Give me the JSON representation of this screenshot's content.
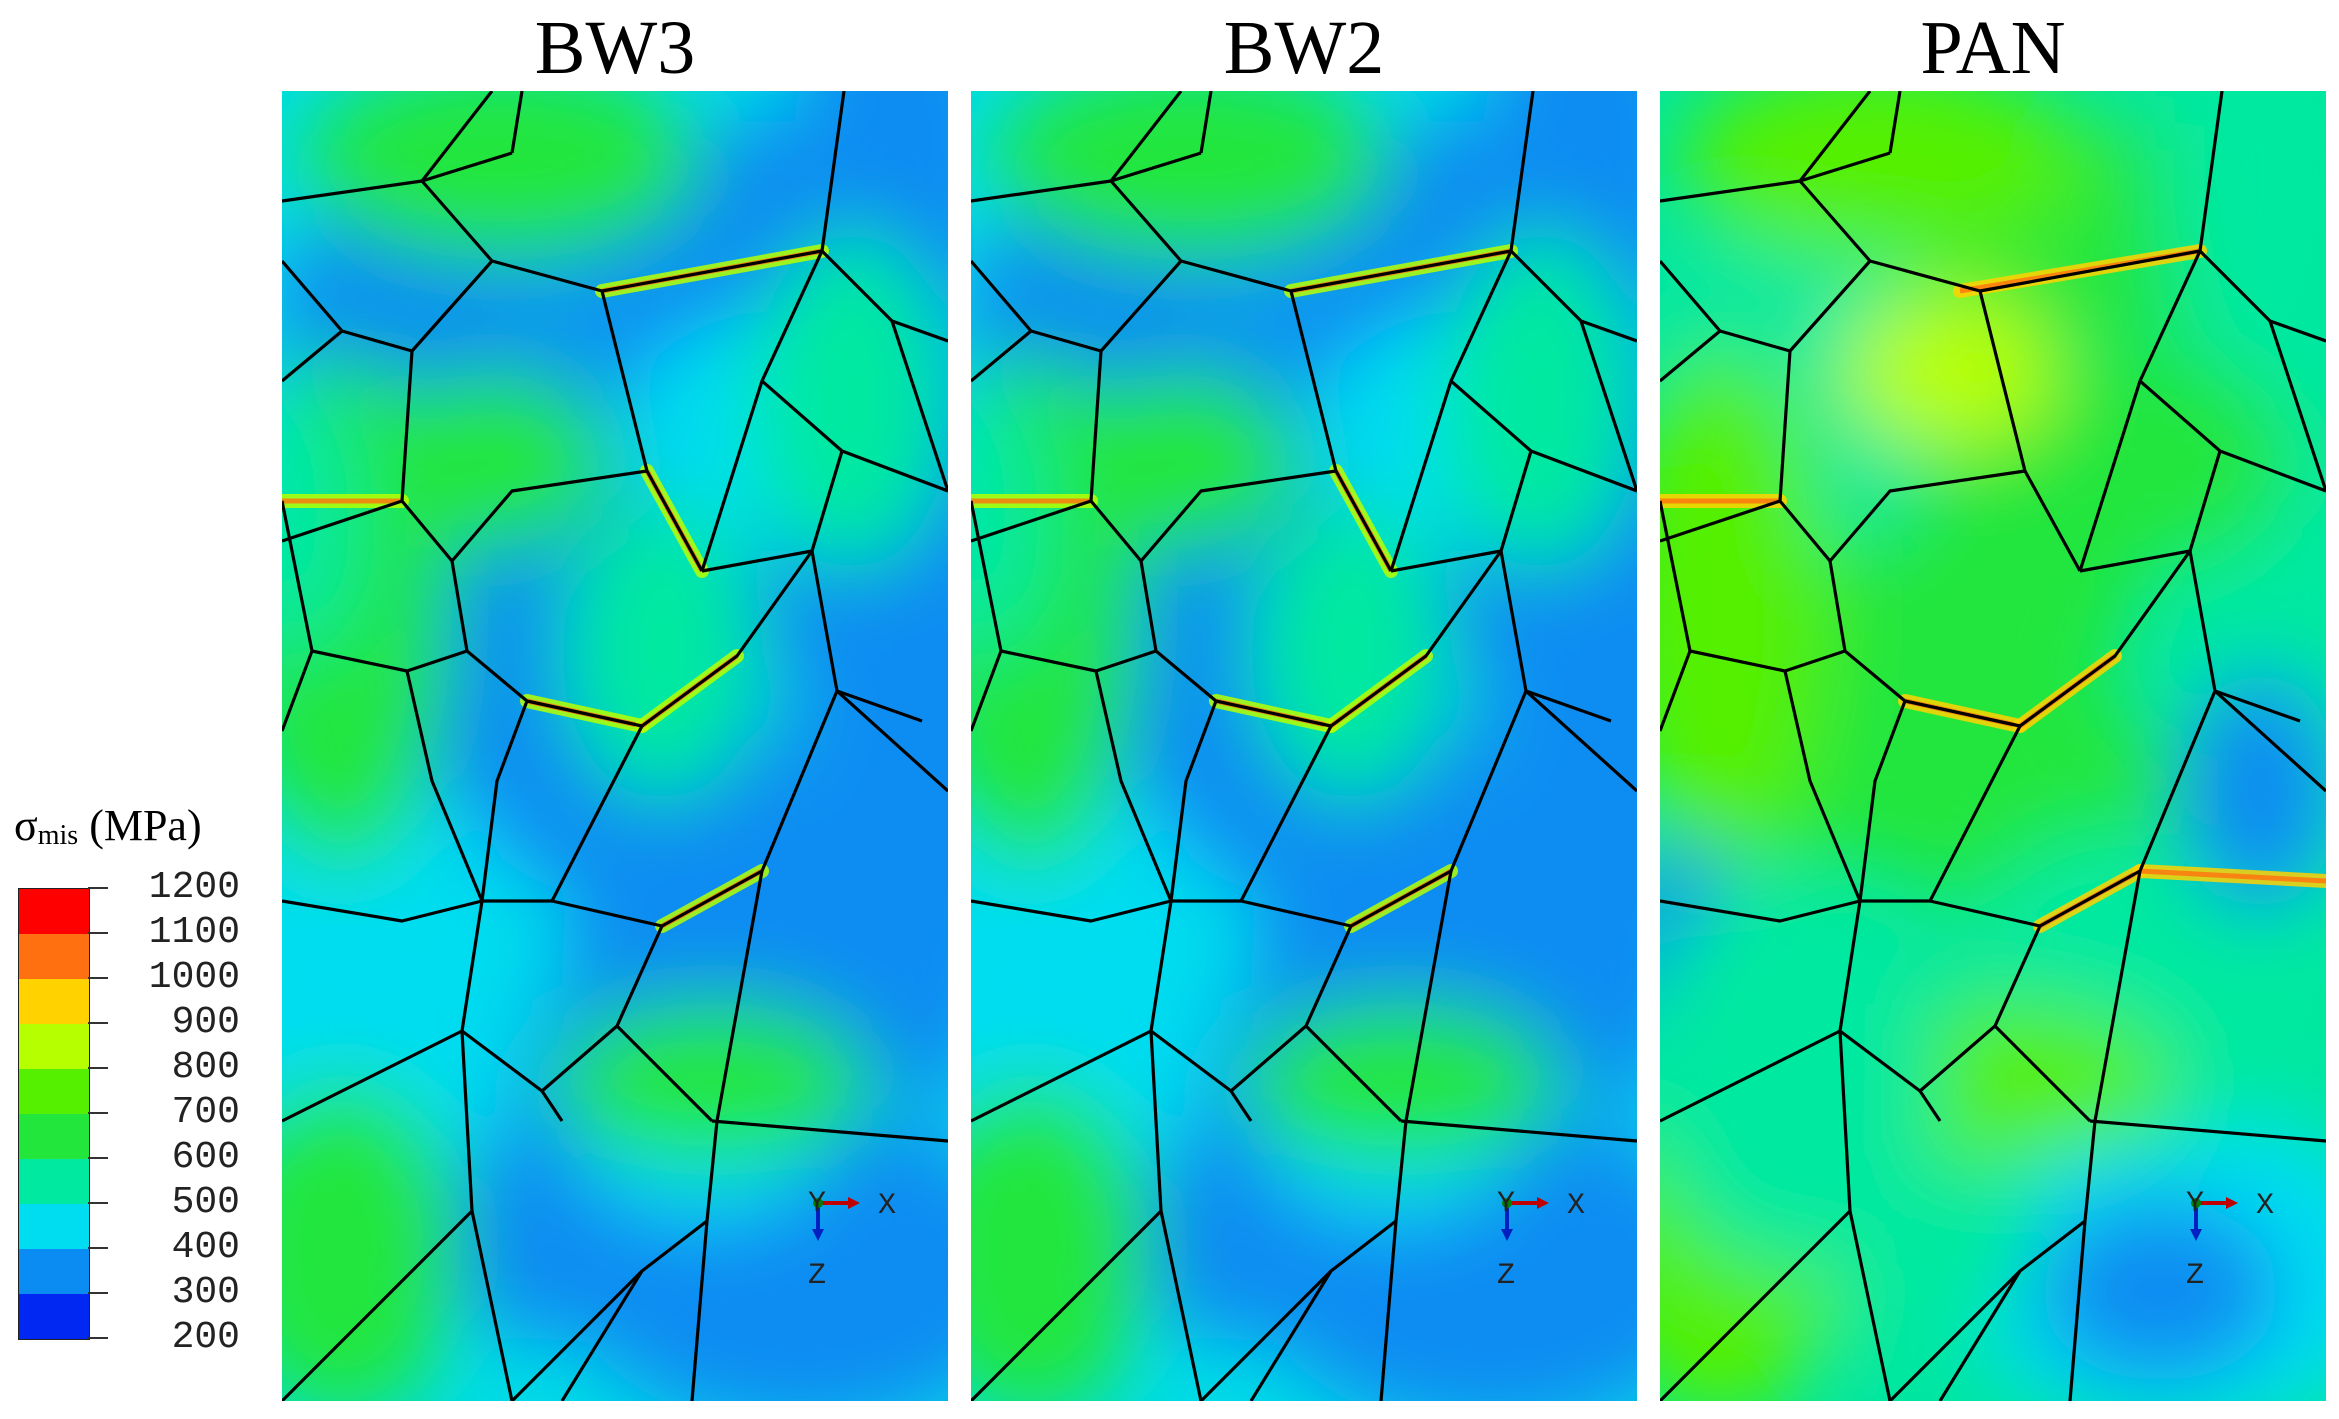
{
  "panels": [
    {
      "title": "BW3",
      "variant": "bw"
    },
    {
      "title": "BW2",
      "variant": "bw"
    },
    {
      "title": "PAN",
      "variant": "pan"
    }
  ],
  "legend": {
    "symbol": "σ",
    "subscript": "mis",
    "unit": "(MPa)",
    "levels": [
      {
        "label": "1200",
        "color": "#ff0000"
      },
      {
        "label": "1100",
        "color": "#ff7010"
      },
      {
        "label": "1000",
        "color": "#ffd200"
      },
      {
        "label": "900",
        "color": "#b6ff00"
      },
      {
        "label": "800",
        "color": "#55f000"
      },
      {
        "label": "700",
        "color": "#22e63c"
      },
      {
        "label": "600",
        "color": "#00e9a0"
      },
      {
        "label": "500",
        "color": "#00ddf0"
      },
      {
        "label": "400",
        "color": "#0a8cf2"
      },
      {
        "label": "300",
        "color": "#0028f2"
      },
      {
        "label": "200",
        "color": ""
      }
    ]
  },
  "triad": {
    "x_label": "X",
    "y_label": "Y",
    "z_label": "Z"
  }
}
